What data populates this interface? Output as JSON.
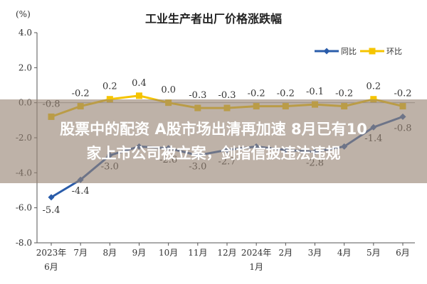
{
  "chart_data": {
    "type": "line",
    "title": "工业生产者出厂价格涨跌幅",
    "unit": "(%)",
    "categories": [
      [
        "2023年",
        "6月"
      ],
      [
        "7月"
      ],
      [
        "8月"
      ],
      [
        "9月"
      ],
      [
        "10月"
      ],
      [
        "11月"
      ],
      [
        "12月"
      ],
      [
        "2024年",
        "1月"
      ],
      [
        "2月"
      ],
      [
        "3月"
      ],
      [
        "4月"
      ],
      [
        "5月"
      ],
      [
        "6月"
      ]
    ],
    "series": [
      {
        "name": "同比",
        "color": "#2a5caa",
        "values": [
          -5.4,
          -4.4,
          -3.0,
          -2.5,
          -2.6,
          -3.0,
          -2.7,
          -2.5,
          -2.7,
          -2.8,
          -2.5,
          -1.4,
          -0.8
        ],
        "labels": [
          "-5.4",
          "-4.4",
          "-3.0",
          "",
          "-2.6",
          "-3.0",
          "-2.7",
          "",
          "",
          "-2.8",
          "",
          "-1.4",
          "-0.8"
        ]
      },
      {
        "name": "环比",
        "color": "#f5c400",
        "values": [
          -0.8,
          -0.2,
          0.2,
          0.4,
          0.0,
          -0.3,
          -0.3,
          -0.2,
          -0.2,
          -0.1,
          -0.2,
          0.2,
          -0.2
        ],
        "labels": [
          "-0.8",
          "-0.2",
          "0.2",
          "0.4",
          "0.0",
          "-0.3",
          "-0.3",
          "-0.2",
          "-0.2",
          "-0.1",
          "-0.2",
          "0.2",
          "-0.2"
        ]
      }
    ],
    "ylim": [
      -8.0,
      4.0
    ],
    "yticks": [
      "4.0",
      "2.0",
      "0.0",
      "-2.0",
      "-4.0",
      "-6.0",
      "-8.0"
    ],
    "legend_position": "top-right",
    "grid": false
  },
  "overlay": {
    "headline_line1": "股票中的配资 A股市场出清再加速 8月已有10",
    "headline_line2": "家上市公司被立案，剑指信披违法违规"
  }
}
